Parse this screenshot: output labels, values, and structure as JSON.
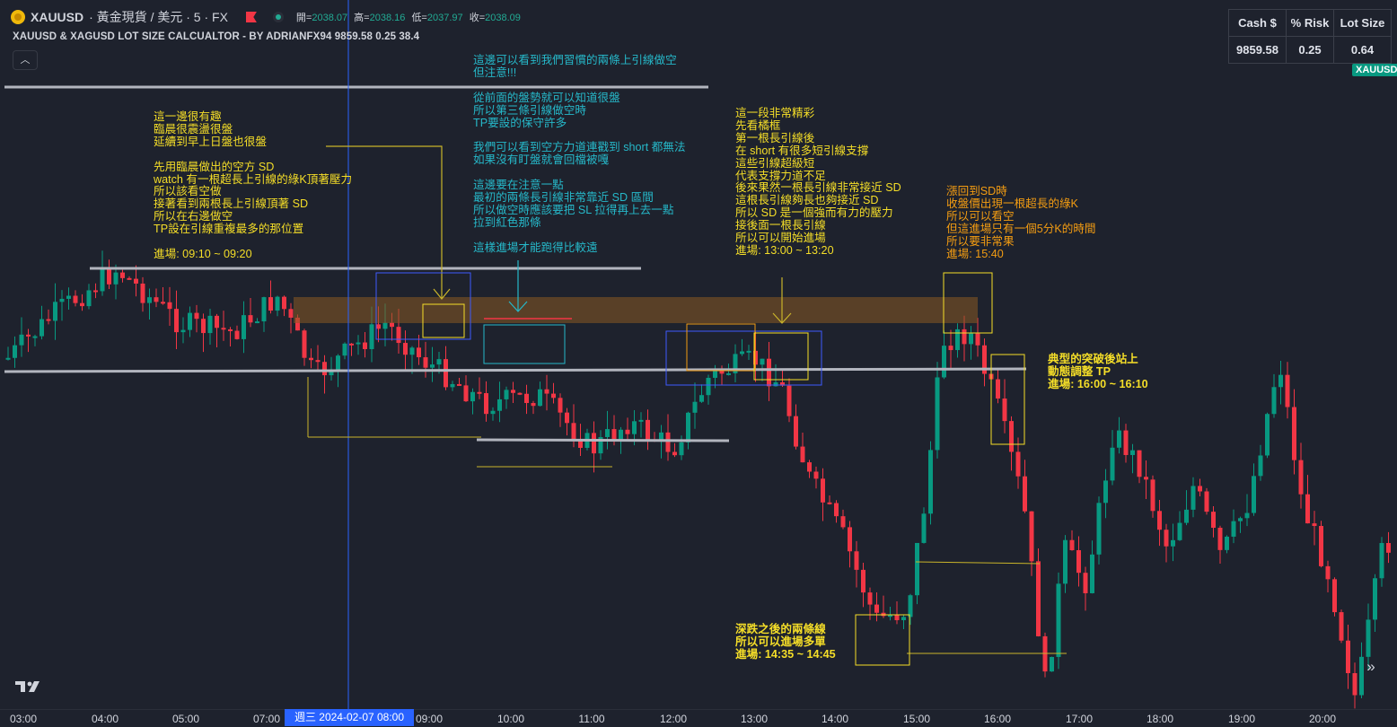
{
  "header": {
    "symbol": "XAUUSD",
    "description": "· 黃金現貨 / 美元 · 5 · FX",
    "ohlc": [
      {
        "label": "開=",
        "value": "2038.07"
      },
      {
        "label": "高=",
        "value": "2038.16"
      },
      {
        "label": "低=",
        "value": "2037.97"
      },
      {
        "label": "收=",
        "value": "2038.09"
      }
    ]
  },
  "indicator_title": "XAUUSD & XAGUSD LOT SIZE CALCUALTOR - BY ADRIANFX94 9859.58 0.25 38.4",
  "collapse_icon": "chevron-up-icon",
  "calculator_table": {
    "headers": [
      "Cash $",
      "% Risk",
      "Lot Size"
    ],
    "values": [
      "9859.58",
      "0.25",
      "0.64"
    ]
  },
  "price_badge": "XAUUSD",
  "colors": {
    "background": "#1e222d",
    "bull": "#089981",
    "bear": "#f23645",
    "annotation_yellow": "#f5de28",
    "annotation_cyan": "#26b8c9",
    "annotation_orange": "#f39c12",
    "zone_fill": "#8a5a22",
    "crosshair_label": "#2962ff"
  },
  "annotations": {
    "a1": "這一邊很有趣\n臨晨很震盪很盤\n延續到早上日盤也很盤\n\n先用臨晨做出的空方 SD\nwatch 有一根超長上引線的綠K頂著壓力\n所以該看空做\n接著看到兩根長上引線頂著 SD\n所以在右邊做空\nTP設在引線重複最多的那位置\n\n進場: 09:10 ~ 09:20",
    "a2": "這邊可以看到我們習慣的兩條上引線做空\n但注意!!!\n\n從前面的盤勢就可以知道很盤\n所以第三條引線做空時\nTP要設的保守許多\n\n我們可以看到空方力道連戳到 short 都無法\n如果沒有盯盤就會回檔被嘎\n\n這邊要在注意一點\n最初的兩條長引線非常靠近 SD 區間\n所以做空時應該要把 SL 拉得再上去一點\n拉到紅色那條\n\n這樣進場才能跑得比較遠",
    "a3": "這一段非常精彩\n先看橘框\n第一根長引線後\n在 short 有很多短引線支撐\n這些引線超級短\n代表支撐力道不足\n後來果然一根長引線非常接近 SD\n這根長引線夠長也夠接近 SD\n所以 SD 是一個強而有力的壓力\n接後面一根長引線\n所以可以開始進場\n進場: 13:00 ~ 13:20",
    "a4": "漲回到SD時\n收盤價出現一根超長的綠K\n所以可以看空\n但這進場只有一個5分K的時間\n所以要非常果\n進場: 15:40",
    "a5": "典型的突破後站上\n動態調整 TP\n進場: 16:00 ~ 16:10",
    "a6": "深跌之後的兩條線\n所以可以進場多單\n進場: 14:35 ~ 14:45"
  },
  "time_axis": {
    "ticks": [
      "03:00",
      "04:00",
      "05:00",
      "07:00",
      "09:00",
      "10:00",
      "11:00",
      "12:00",
      "13:00",
      "14:00",
      "15:00",
      "16:00",
      "17:00",
      "18:00",
      "19:00",
      "20:00"
    ],
    "crosshair_label": "週三 2024-02-07   08:00"
  },
  "chart_data": {
    "type": "candlestick",
    "symbol": "XAUUSD",
    "timeframe": "5",
    "x_ticks": [
      "03:00",
      "04:00",
      "05:00",
      "07:00",
      "09:00",
      "10:00",
      "11:00",
      "12:00",
      "13:00",
      "14:00",
      "15:00",
      "16:00",
      "17:00",
      "18:00",
      "19:00",
      "20:00"
    ],
    "last_ohlc": {
      "open": 2038.07,
      "high": 2038.16,
      "low": 2037.97,
      "close": 2038.09
    }
  }
}
